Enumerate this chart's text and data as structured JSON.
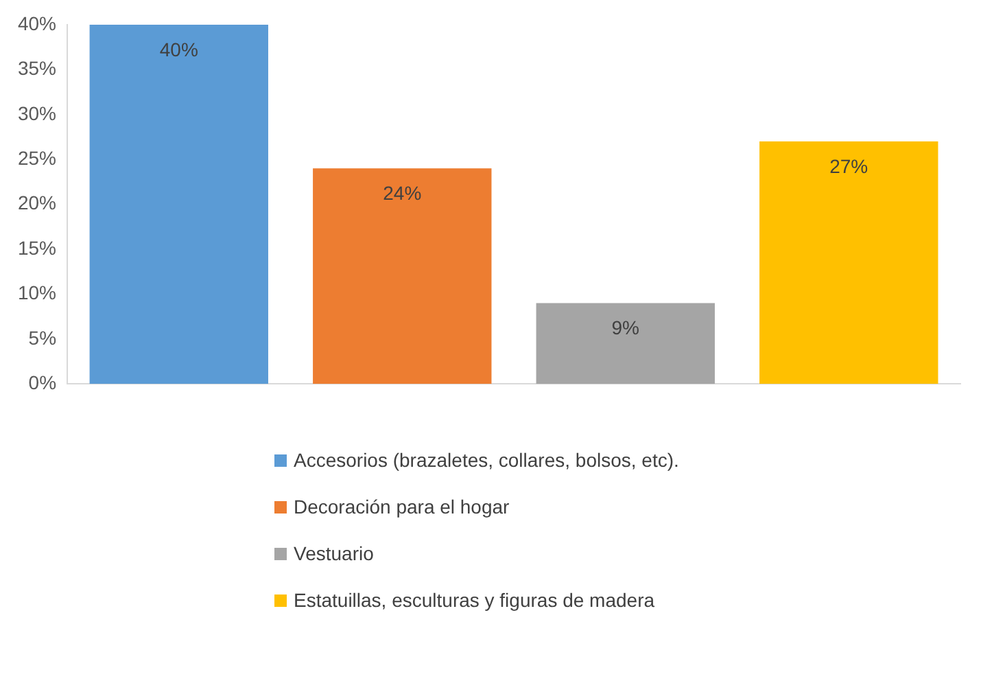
{
  "chart_data": {
    "type": "bar",
    "categories": [
      null,
      null,
      null,
      null
    ],
    "series": [
      {
        "name": "Accesorios (brazaletes, collares, bolsos, etc).",
        "color": "#5b9bd5",
        "values": [
          40,
          null,
          null,
          null
        ],
        "value_labels": [
          "40%",
          null,
          null,
          null
        ]
      },
      {
        "name": "Decoración para el hogar",
        "color": "#ed7d31",
        "values": [
          null,
          24,
          null,
          null
        ],
        "value_labels": [
          null,
          "24%",
          null,
          null
        ]
      },
      {
        "name": "Vestuario",
        "color": "#a5a5a5",
        "values": [
          null,
          null,
          9,
          null
        ],
        "value_labels": [
          null,
          null,
          "9%",
          null
        ]
      },
      {
        "name": "Estatuillas, esculturas  y figuras de madera",
        "color": "#ffc000",
        "values": [
          null,
          null,
          null,
          27
        ],
        "value_labels": [
          null,
          null,
          null,
          "27%"
        ]
      }
    ],
    "ylim": [
      0,
      40
    ],
    "yticks": [
      {
        "value": 0,
        "label": "0%"
      },
      {
        "value": 5,
        "label": "5%"
      },
      {
        "value": 10,
        "label": "10%"
      },
      {
        "value": 15,
        "label": "15%"
      },
      {
        "value": 20,
        "label": "20%"
      },
      {
        "value": 25,
        "label": "25%"
      },
      {
        "value": 30,
        "label": "30%"
      },
      {
        "value": 35,
        "label": "35%"
      },
      {
        "value": 40,
        "label": "40%"
      }
    ],
    "grid": false,
    "legend": "bottom"
  }
}
